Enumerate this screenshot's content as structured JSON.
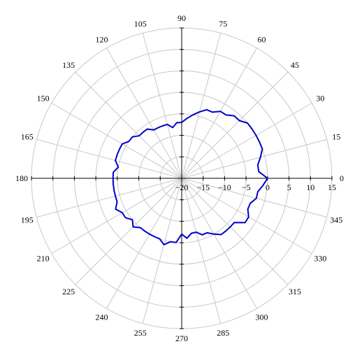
{
  "chart_data": {
    "type": "line",
    "subtype": "polar",
    "title": "",
    "angle_unit": "degrees",
    "angle_ticks": [
      0,
      15,
      30,
      45,
      60,
      75,
      90,
      105,
      120,
      135,
      150,
      165,
      180,
      195,
      210,
      225,
      240,
      255,
      270,
      285,
      300,
      315,
      330,
      345
    ],
    "angle_tick_labels": [
      "0",
      "15",
      "30",
      "45",
      "60",
      "75",
      "90",
      "105",
      "120",
      "135",
      "150",
      "165",
      "180",
      "195",
      "210",
      "225",
      "240",
      "255",
      "270",
      "285",
      "300",
      "315",
      "330",
      "345"
    ],
    "rlim": [
      -20,
      15
    ],
    "r_ticks": [
      -20,
      -15,
      -10,
      -5,
      0,
      5,
      10,
      15
    ],
    "r_tick_labels": [
      "−20",
      "−15",
      "−10",
      "−5",
      "0",
      "5",
      "10",
      "15"
    ],
    "grid": true,
    "series": [
      {
        "color": "#0000cc",
        "angles": [
          0,
          5,
          10,
          15,
          20,
          25,
          30,
          35,
          40,
          45,
          50,
          55,
          60,
          65,
          70,
          75,
          80,
          85,
          90,
          95,
          100,
          105,
          110,
          115,
          120,
          125,
          130,
          135,
          140,
          145,
          150,
          155,
          160,
          165,
          170,
          175,
          180,
          185,
          190,
          195,
          200,
          205,
          210,
          215,
          220,
          225,
          230,
          235,
          240,
          245,
          250,
          255,
          260,
          265,
          270,
          275,
          280,
          285,
          290,
          295,
          300,
          305,
          310,
          315,
          320,
          325,
          330,
          335,
          340,
          345,
          350,
          355,
          360
        ],
        "values": [
          0,
          -2,
          -2,
          -1,
          0,
          0,
          0,
          0,
          0,
          -1,
          -1,
          -2,
          -2,
          -3,
          -3,
          -4,
          -5,
          -6,
          -7,
          -7,
          -8,
          -7,
          -7,
          -7,
          -7,
          -6,
          -6,
          -6,
          -5,
          -5,
          -4,
          -4,
          -4,
          -4,
          -5,
          -4,
          -4,
          -4,
          -4,
          -4,
          -4,
          -3,
          -4,
          -4,
          -5,
          -4,
          -5,
          -5,
          -5,
          -5,
          -5,
          -4,
          -5,
          -5,
          -7,
          -6,
          -7,
          -7,
          -6,
          -6,
          -5,
          -4,
          -4,
          -4,
          -4,
          -2,
          -2,
          -3,
          -3,
          -2,
          -2,
          -1,
          0
        ]
      }
    ]
  }
}
